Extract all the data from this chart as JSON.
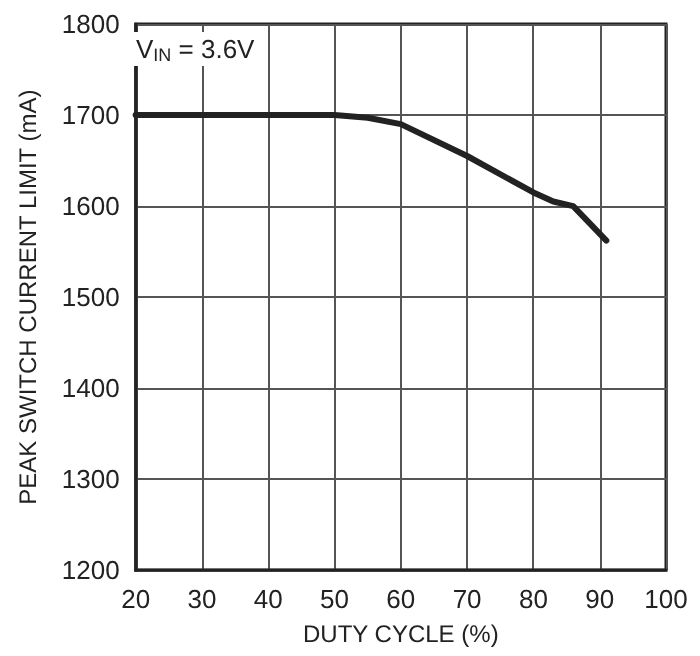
{
  "chart_data": {
    "type": "line",
    "xlabel": "DUTY CYCLE (%)",
    "ylabel": "PEAK SWITCH CURRENT LIMIT (mA)",
    "annotations": [
      "V$_{IN}$ = 3.6V"
    ],
    "x": [
      20,
      50,
      55,
      60,
      70,
      80,
      83,
      86,
      91
    ],
    "series": [
      {
        "color": "#222222",
        "values": [
          1700,
          1700,
          1697,
          1690,
          1655,
          1615,
          1605,
          1600,
          1562
        ]
      }
    ],
    "xlim": [
      20,
      100
    ],
    "xticks": [
      20,
      30,
      40,
      50,
      60,
      70,
      80,
      90,
      100
    ],
    "ylim": [
      1200,
      1800
    ],
    "yticks": [
      1200,
      1300,
      1400,
      1500,
      1600,
      1700,
      1800
    ],
    "grid": true,
    "marker": "none",
    "line_style": "solid"
  }
}
